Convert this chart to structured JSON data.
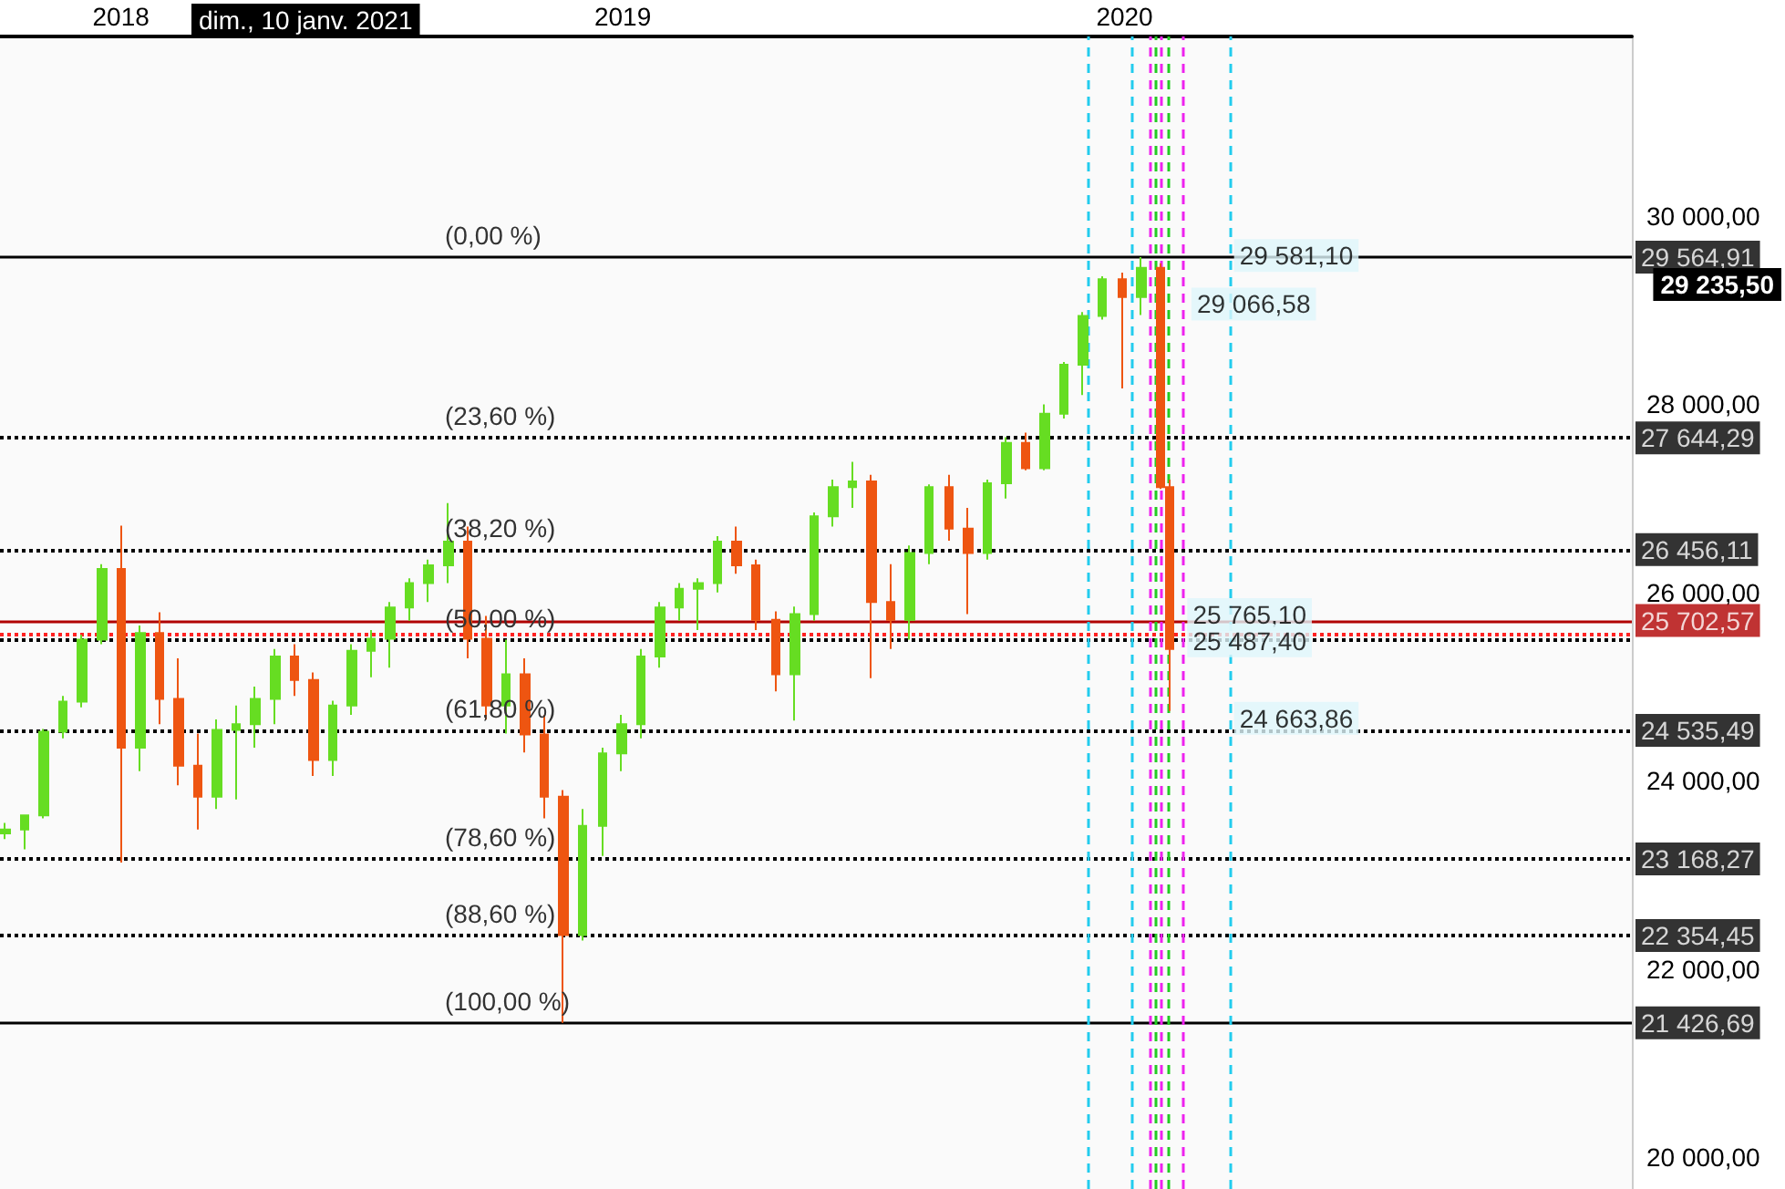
{
  "chart_data": {
    "type": "candlestick",
    "x": [
      "2017-10-09",
      "2017-10-23",
      "2017-11-06",
      "2017-11-20",
      "2017-12-04",
      "2017-12-18",
      "2018-01-01",
      "2018-01-15",
      "2018-01-29",
      "2018-02-12",
      "2018-02-26",
      "2018-03-12",
      "2018-03-26",
      "2018-04-09",
      "2018-04-23",
      "2018-05-07",
      "2018-05-21",
      "2018-06-04",
      "2018-06-18",
      "2018-07-02",
      "2018-07-16",
      "2018-07-30",
      "2018-08-13",
      "2018-08-27",
      "2018-09-10",
      "2018-09-24",
      "2018-10-08",
      "2018-10-22",
      "2018-11-05",
      "2018-11-19",
      "2018-12-03",
      "2018-12-17",
      "2018-12-31",
      "2019-01-14",
      "2019-01-28",
      "2019-02-11",
      "2019-02-25",
      "2019-03-11",
      "2019-03-25",
      "2019-04-08",
      "2019-04-22",
      "2019-05-06",
      "2019-05-20",
      "2019-06-03",
      "2019-06-17",
      "2019-07-01",
      "2019-07-15",
      "2019-07-29",
      "2019-08-12",
      "2019-08-26",
      "2019-09-09",
      "2019-09-23",
      "2019-10-07",
      "2019-10-21",
      "2019-11-04",
      "2019-11-18",
      "2019-12-02",
      "2019-12-16",
      "2019-12-30",
      "2020-01-13",
      "2020-01-27",
      "2020-02-03"
    ],
    "ohlc": [
      [
        23440,
        23550,
        23380,
        23480
      ],
      [
        23480,
        23640,
        23270,
        23630
      ],
      [
        23630,
        24550,
        23600,
        24520
      ],
      [
        24520,
        24900,
        24450,
        24840
      ],
      [
        24840,
        25550,
        24780,
        25500
      ],
      [
        25500,
        26300,
        25450,
        26250
      ],
      [
        26250,
        26710,
        23130,
        24350
      ],
      [
        24350,
        25650,
        24100,
        25570
      ],
      [
        25570,
        25790,
        24600,
        24870
      ],
      [
        24870,
        25300,
        23950,
        24160
      ],
      [
        24160,
        24500,
        23480,
        23830
      ],
      [
        23830,
        24650,
        23700,
        24540
      ],
      [
        24540,
        24800,
        23800,
        24600
      ],
      [
        24600,
        25000,
        24350,
        24870
      ],
      [
        24870,
        25400,
        24600,
        25320
      ],
      [
        25320,
        25450,
        24900,
        25070
      ],
      [
        25070,
        25150,
        24050,
        24220
      ],
      [
        24220,
        24850,
        24050,
        24800
      ],
      [
        24800,
        25450,
        24700,
        25380
      ],
      [
        25380,
        25600,
        25100,
        25510
      ],
      [
        25510,
        25900,
        25200,
        25840
      ],
      [
        25840,
        26150,
        25700,
        26100
      ],
      [
        26100,
        26350,
        25900,
        26290
      ],
      [
        26290,
        26950,
        26100,
        26540
      ],
      [
        26540,
        26700,
        25300,
        25510
      ],
      [
        25510,
        25750,
        24650,
        24800
      ],
      [
        24800,
        25500,
        24500,
        25130
      ],
      [
        25130,
        25300,
        24300,
        24490
      ],
      [
        24490,
        24700,
        23600,
        23830
      ],
      [
        23830,
        23900,
        21426.69,
        22360
      ],
      [
        22360,
        23700,
        22300,
        23520
      ],
      [
        23520,
        24350,
        23200,
        24290
      ],
      [
        24290,
        24700,
        24100,
        24600
      ],
      [
        24600,
        25400,
        24450,
        25320
      ],
      [
        25320,
        25900,
        25200,
        25840
      ],
      [
        25840,
        26100,
        25700,
        26040
      ],
      [
        26040,
        26150,
        25600,
        26100
      ],
      [
        26100,
        26600,
        26000,
        26540
      ],
      [
        26540,
        26700,
        26200,
        26290
      ],
      [
        26290,
        26350,
        25600,
        25710
      ],
      [
        25710,
        25800,
        24950,
        25130
      ],
      [
        25130,
        25850,
        24640,
        25770
      ],
      [
        25770,
        26850,
        25700,
        26810
      ],
      [
        26810,
        27200,
        26700,
        27120
      ],
      [
        27120,
        27390,
        26900,
        27180
      ],
      [
        27180,
        27250,
        25090,
        25900
      ],
      [
        25900,
        26300,
        25400,
        25710
      ],
      [
        25710,
        26500,
        25500,
        26420
      ],
      [
        26420,
        27150,
        26300,
        27120
      ],
      [
        27120,
        27250,
        26550,
        26680
      ],
      [
        26680,
        26900,
        25770,
        26420
      ],
      [
        26420,
        27200,
        26350,
        27160
      ],
      [
        27160,
        27650,
        27000,
        27590
      ],
      [
        27590,
        27700,
        27300,
        27320
      ],
      [
        27320,
        28000,
        27300,
        27900
      ],
      [
        27900,
        28450,
        27850,
        28420
      ],
      [
        28420,
        28980,
        28100,
        28940
      ],
      [
        28940,
        29360,
        28900,
        29330
      ],
      [
        29330,
        29400,
        28170,
        29140
      ],
      [
        29140,
        29564.91,
        28950,
        29450
      ],
      [
        29450,
        29500,
        27100,
        27120
      ],
      [
        27120,
        27200,
        24740,
        25400
      ]
    ],
    "colors": [
      "#66dd22",
      "#66dd22",
      "#66dd22",
      "#66dd22",
      "#66dd22",
      "#66dd22",
      "#ee5511",
      "#66dd22",
      "#ee5511",
      "#ee5511",
      "#ee5511",
      "#66dd22",
      "#66dd22",
      "#66dd22",
      "#66dd22",
      "#ee5511",
      "#ee5511",
      "#66dd22",
      "#66dd22",
      "#66dd22",
      "#66dd22",
      "#66dd22",
      "#66dd22",
      "#66dd22",
      "#ee5511",
      "#ee5511",
      "#66dd22",
      "#ee5511",
      "#ee5511",
      "#ee5511",
      "#66dd22",
      "#66dd22",
      "#66dd22",
      "#66dd22",
      "#66dd22",
      "#66dd22",
      "#66dd22",
      "#66dd22",
      "#ee5511",
      "#ee5511",
      "#ee5511",
      "#66dd22",
      "#66dd22",
      "#66dd22",
      "#66dd22",
      "#ee5511",
      "#ee5511",
      "#66dd22",
      "#66dd22",
      "#ee5511",
      "#ee5511",
      "#66dd22",
      "#66dd22",
      "#ee5511",
      "#66dd22",
      "#66dd22",
      "#66dd22",
      "#66dd22",
      "#ee5511",
      "#66dd22",
      "#ee5511",
      "#ee5511"
    ],
    "xlim": [
      "2017-10-05",
      "2021-01-04"
    ],
    "xticks": [
      {
        "value": "2018-01-01",
        "label": "2018"
      },
      {
        "value": "2019-01-01",
        "label": "2019"
      },
      {
        "value": "2020-01-01",
        "label": "2020"
      }
    ],
    "ylim": [
      19660,
      31910
    ],
    "yticks": [
      {
        "value": 20000,
        "label": "20 000,00"
      },
      {
        "value": 22000,
        "label": "22 000,00"
      },
      {
        "value": 24000,
        "label": "24 000,00"
      },
      {
        "value": 26000,
        "label": "26 000,00"
      },
      {
        "value": 28000,
        "label": "28 000,00"
      },
      {
        "value": 30000,
        "label": "30 000,00"
      }
    ],
    "grid": false,
    "ref_lines": [
      {
        "axis": "y",
        "value": 29564.91,
        "label": "29 564,91",
        "color": "#000000",
        "line_style": "solid"
      },
      {
        "axis": "y",
        "value": 27644.29,
        "label": "27 644,29",
        "color": "#000000",
        "line_style": "dotted"
      },
      {
        "axis": "y",
        "value": 26456.11,
        "label": "26 456,11",
        "color": "#000000",
        "line_style": "dotted"
      },
      {
        "axis": "y",
        "value": 24535.49,
        "label": "24 535,49",
        "color": "#000000",
        "line_style": "dotted"
      },
      {
        "axis": "y",
        "value": 23168.27,
        "label": "23 168,27",
        "color": "#000000",
        "line_style": "dotted"
      },
      {
        "axis": "y",
        "value": 22354.45,
        "label": "22 354,45",
        "color": "#000000",
        "line_style": "dotted"
      },
      {
        "axis": "y",
        "value": 21426.69,
        "label": "21 426,69",
        "color": "#000000",
        "line_style": "solid"
      },
      {
        "axis": "y",
        "value": 25495.8,
        "label": null,
        "color": "#000000",
        "line_style": "dotted"
      },
      {
        "axis": "y",
        "value": 25555,
        "label": null,
        "color": "#ff2222",
        "line_style": "dotted"
      },
      {
        "axis": "y",
        "value": 25702.57,
        "label": "25 702,57",
        "color": "#b00000",
        "line_style": "solid"
      },
      {
        "axis": "x",
        "value": "2019-12-05",
        "label": null,
        "color": "#22ccee",
        "line_style": "dashed"
      },
      {
        "axis": "x",
        "value": "2020-01-06",
        "label": null,
        "color": "#22ccee",
        "line_style": "dashed"
      },
      {
        "axis": "x",
        "value": "2020-03-18",
        "label": null,
        "color": "#22ccee",
        "line_style": "dashed"
      },
      {
        "axis": "x",
        "value": "2020-01-19",
        "label": null,
        "color": "#ee22ee",
        "line_style": "dashed"
      },
      {
        "axis": "x",
        "value": "2020-01-28",
        "label": null,
        "color": "#ee22ee",
        "line_style": "dashed"
      },
      {
        "axis": "x",
        "value": "2020-02-13",
        "label": null,
        "color": "#ee22ee",
        "line_style": "dashed"
      },
      {
        "axis": "x",
        "value": "2020-01-24",
        "label": null,
        "color": "#22cc22",
        "line_style": "dashed"
      },
      {
        "axis": "x",
        "value": "2020-02-02",
        "label": null,
        "color": "#22cc22",
        "line_style": "dashed"
      }
    ],
    "annotations": [
      "dim., 10 janv. 2021",
      "29 235,50",
      {
        "text": "(0,00 %)",
        "y": 29564.91
      },
      {
        "text": "(23,60 %)",
        "y": 27644.29
      },
      {
        "text": "(38,20 %)",
        "y": 26456.11
      },
      {
        "text": "(50,00 %)",
        "y": 25495.8
      },
      {
        "text": "(61,80 %)",
        "y": 24535.49
      },
      {
        "text": "(78,60 %)",
        "y": 23168.27
      },
      {
        "text": "(88,60 %)",
        "y": 22354.45
      },
      {
        "text": "(100,00 %)",
        "y": 21426.69
      },
      {
        "text": "29 581,10",
        "x": "2020-03-18",
        "y": 29581.1
      },
      {
        "text": "29 066,58",
        "x": "2020-02-16",
        "y": 29066.58
      },
      {
        "text": "25 765,10",
        "x": "2020-02-13",
        "y": 25765.1
      },
      {
        "text": "25 487,40",
        "x": "2020-02-13",
        "y": 25487.4
      },
      {
        "text": "24 663,86",
        "x": "2020-03-18",
        "y": 24663.86
      }
    ]
  }
}
